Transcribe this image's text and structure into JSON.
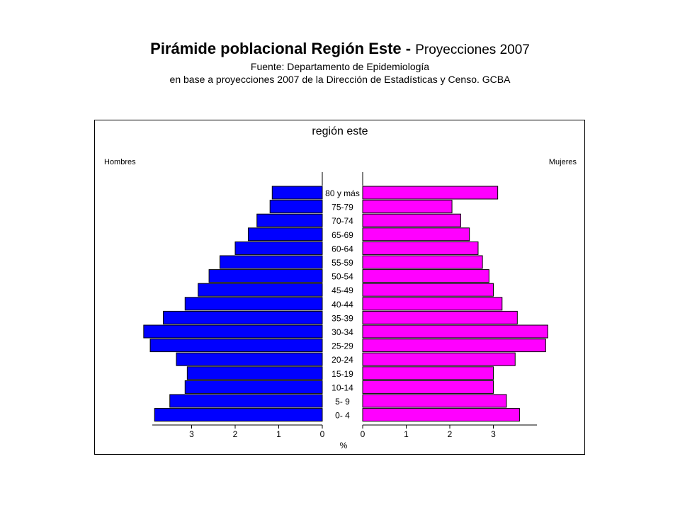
{
  "header": {
    "title_bold": "Pirámide poblacional Región Este -",
    "title_rest": "Proyecciones 2007",
    "source_line1": "Fuente: Departamento de Epidemiología",
    "source_line2": "en base a proyecciones 2007 de la Dirección de Estadísticas y Censo. GCBA"
  },
  "chart_data": {
    "type": "bar",
    "orientation": "horizontal-pyramid",
    "title": "región este",
    "xlabel": "%",
    "left_label": "Hombres",
    "right_label": "Mujeres",
    "xlim": [
      0,
      4
    ],
    "ticks": [
      0,
      1,
      2,
      3
    ],
    "categories": [
      "80 y más",
      "75-79",
      "70-74",
      "65-69",
      "60-64",
      "55-59",
      "50-54",
      "45-49",
      "40-44",
      "35-39",
      "30-34",
      "25-29",
      "20-24",
      "15-19",
      "10-14",
      "5- 9",
      "0- 4"
    ],
    "series": [
      {
        "name": "Hombres",
        "color": "#0000ff",
        "values": [
          1.15,
          1.2,
          1.5,
          1.7,
          2.0,
          2.35,
          2.6,
          2.85,
          3.15,
          3.65,
          4.1,
          3.95,
          3.35,
          3.1,
          3.15,
          3.5,
          3.85
        ]
      },
      {
        "name": "Mujeres",
        "color": "#ff00ff",
        "values": [
          3.1,
          2.05,
          2.25,
          2.45,
          2.65,
          2.75,
          2.9,
          3.0,
          3.2,
          3.55,
          4.25,
          4.2,
          3.5,
          3.0,
          3.0,
          3.3,
          3.6
        ]
      }
    ]
  }
}
